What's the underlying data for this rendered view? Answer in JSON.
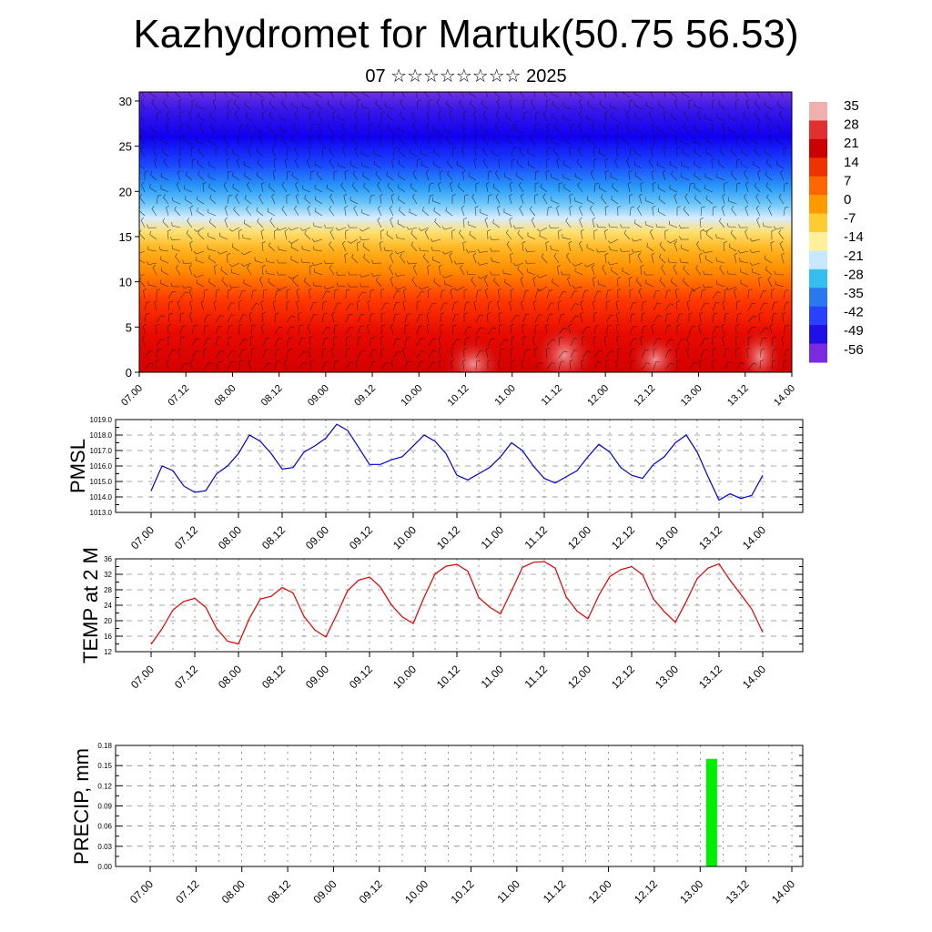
{
  "title": "Kazhydromet for Martuk(50.75 56.53)",
  "subtitle": "07 ☆☆☆☆☆☆☆☆ 2025",
  "chart_data": [
    {
      "type": "heatmap",
      "name": "upper-air temperature and wind",
      "y_ticks": [
        0,
        5,
        10,
        15,
        20,
        25,
        30
      ],
      "ylim": [
        0,
        31
      ],
      "x_tick_labels": [
        "07.00",
        "07.12",
        "08.00",
        "08.12",
        "09.00",
        "09.12",
        "10.00",
        "10.12",
        "11.00",
        "11.12",
        "12.00",
        "12.12",
        "13.00",
        "13.12",
        "14.00"
      ],
      "colorbar_labels": [
        "35",
        "28",
        "21",
        "14",
        "7",
        "0",
        "-7",
        "-14",
        "-21",
        "-28",
        "-35",
        "-42",
        "-49",
        "-56"
      ],
      "colorbar_colors": [
        "#f0b0b0",
        "#e03030",
        "#cc0000",
        "#ee3300",
        "#ff6600",
        "#ff9900",
        "#ffcc33",
        "#fff099",
        "#c8e8ff",
        "#33c0f0",
        "#2a78f0",
        "#2a40ff",
        "#1f10e8",
        "#7a2ae0"
      ],
      "description_levels": {
        "surface_max": 35,
        "top_min": -56
      }
    },
    {
      "type": "line",
      "ylabel": "PMSL",
      "ylim": [
        1013.0,
        1019.0
      ],
      "y_ticks": [
        "1013.0",
        "1014.0",
        "1015.0",
        "1016.0",
        "1017.0",
        "1018.0",
        "1019.0"
      ],
      "x_tick_labels": [
        "07.00",
        "07.12",
        "08.00",
        "08.12",
        "09.00",
        "09.12",
        "10.00",
        "10.12",
        "11.00",
        "11.12",
        "12.00",
        "12.12",
        "13.00",
        "13.12",
        "14.00"
      ],
      "color": "#0000cc",
      "step_hours": 3,
      "values": [
        1014.4,
        1016.0,
        1015.7,
        1014.7,
        1014.3,
        1014.4,
        1015.5,
        1016.0,
        1016.8,
        1018.0,
        1017.6,
        1016.8,
        1015.8,
        1015.9,
        1016.9,
        1017.3,
        1017.8,
        1018.7,
        1018.3,
        1017.2,
        1016.1,
        1016.1,
        1016.4,
        1016.6,
        1017.3,
        1018.0,
        1017.6,
        1016.8,
        1015.4,
        1015.1,
        1015.5,
        1015.9,
        1016.6,
        1017.5,
        1017.0,
        1016.0,
        1015.2,
        1014.9,
        1015.3,
        1015.7,
        1016.6,
        1017.4,
        1016.9,
        1015.9,
        1015.4,
        1015.2,
        1016.1,
        1016.6,
        1017.5,
        1018.0,
        1016.9,
        1015.3,
        1013.8,
        1014.2,
        1013.9,
        1014.1,
        1015.4
      ]
    },
    {
      "type": "line",
      "ylabel": "TEMP at 2 M",
      "ylim": [
        12,
        36
      ],
      "y_ticks": [
        "12",
        "16",
        "20",
        "24",
        "28",
        "32",
        "36"
      ],
      "x_tick_labels": [
        "07.00",
        "07.12",
        "08.00",
        "08.12",
        "09.00",
        "09.12",
        "10.00",
        "10.12",
        "11.00",
        "11.12",
        "12.00",
        "12.12",
        "13.00",
        "13.12",
        "14.00"
      ],
      "color": "#dd0000",
      "step_hours": 3,
      "values": [
        13.9,
        17.9,
        22.8,
        25.0,
        25.8,
        23.5,
        18.0,
        14.7,
        14.0,
        20.6,
        25.6,
        26.3,
        28.6,
        27.2,
        21.1,
        17.6,
        15.8,
        21.6,
        27.8,
        30.5,
        31.3,
        28.7,
        24.1,
        21.0,
        19.3,
        26.1,
        32.1,
        34.1,
        34.6,
        32.8,
        26.0,
        23.5,
        21.8,
        27.7,
        33.8,
        35.1,
        35.3,
        33.6,
        26.2,
        22.5,
        20.5,
        26.6,
        31.4,
        33.2,
        34.0,
        31.9,
        25.6,
        22.3,
        19.6,
        25.0,
        30.9,
        33.6,
        34.7,
        30.5,
        26.8,
        23.0,
        17.0
      ]
    },
    {
      "type": "bar",
      "ylabel": "PRECIP, mm",
      "ylim": [
        0,
        0.18
      ],
      "y_ticks": [
        "0.00",
        "0.03",
        "0.06",
        "0.09",
        "0.12",
        "0.15",
        "0.18"
      ],
      "x_tick_labels": [
        "07.00",
        "07.12",
        "08.00",
        "08.12",
        "09.00",
        "09.12",
        "10.00",
        "10.12",
        "11.00",
        "11.12",
        "12.00",
        "12.12",
        "13.00",
        "13.12",
        "14.00"
      ],
      "color": "#00ee00",
      "bars": [
        {
          "hour": 147,
          "value": 0.16
        }
      ]
    }
  ]
}
